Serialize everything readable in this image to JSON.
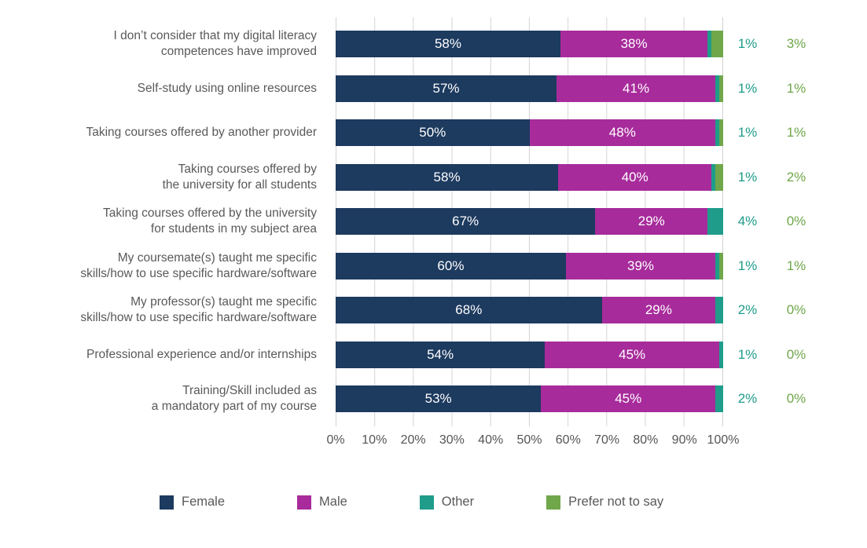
{
  "chart_data": {
    "type": "bar",
    "orientation": "horizontal",
    "stacked": true,
    "categories": [
      [
        "I don’t consider that my digital literacy",
        "competences have improved"
      ],
      [
        "Self-study using online resources"
      ],
      [
        "Taking courses offered by another provider"
      ],
      [
        "Taking courses offered by",
        "the university for all students"
      ],
      [
        "Taking courses offered by the university",
        "for students in my subject area"
      ],
      [
        "My coursemate(s) taught me specific",
        "skills/how to use specific hardware/software"
      ],
      [
        "My professor(s) taught me specific",
        "skills/how to use specific hardware/software"
      ],
      [
        "Professional experience and/or internships"
      ],
      [
        "Training/Skill included as",
        "a mandatory part of my course"
      ]
    ],
    "series": [
      {
        "name": "Female",
        "color": "#1d3a5f",
        "labels_inside": true,
        "values": [
          58,
          57,
          50,
          58,
          67,
          60,
          68,
          54,
          53
        ]
      },
      {
        "name": "Male",
        "color": "#a72b9b",
        "labels_inside": true,
        "values": [
          38,
          41,
          48,
          40,
          29,
          39,
          29,
          45,
          45
        ]
      },
      {
        "name": "Other",
        "color": "#1f9c8a",
        "labels_inside": false,
        "values": [
          1,
          1,
          1,
          1,
          4,
          1,
          2,
          1,
          2
        ]
      },
      {
        "name": "Prefer not to say",
        "color": "#6fa74a",
        "labels_inside": false,
        "values": [
          3,
          1,
          1,
          2,
          0,
          1,
          0,
          0,
          0
        ]
      }
    ],
    "x_ticks": [
      "0%",
      "10%",
      "20%",
      "30%",
      "40%",
      "50%",
      "60%",
      "70%",
      "80%",
      "90%",
      "100%"
    ],
    "xlim": [
      0,
      100
    ],
    "grid": "vertical",
    "legend_position": "bottom",
    "value_suffix": "%"
  },
  "colors": {
    "category_text": "#595959",
    "tick_text": "#555555",
    "gridline": "#d4d4d4",
    "bar_label_text": "#ffffff",
    "background": "#ffffff"
  }
}
